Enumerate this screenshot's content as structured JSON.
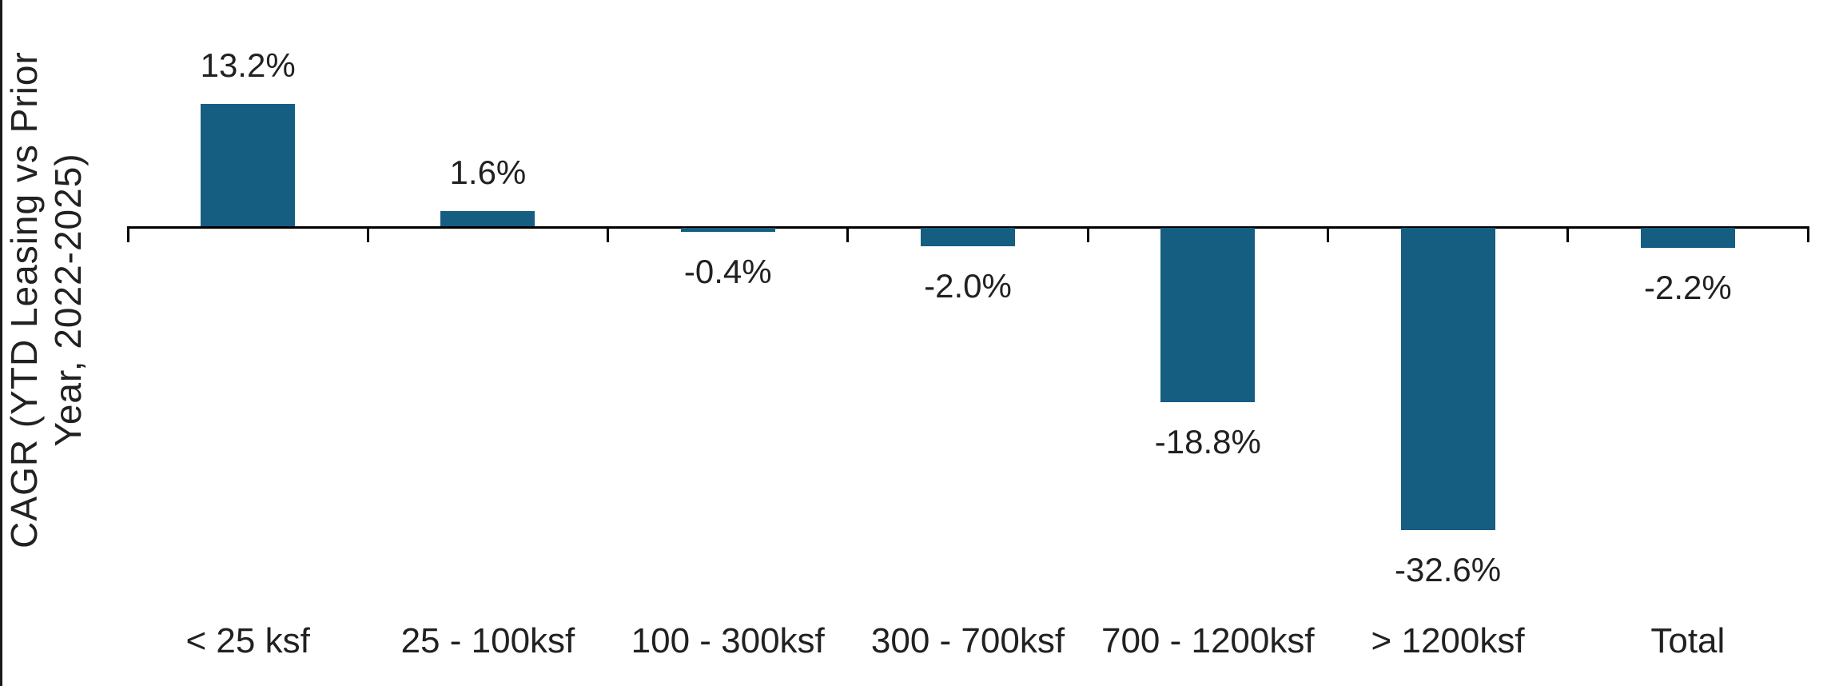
{
  "page": {
    "background_color": "#ffffff",
    "left_border_color": "#1a1a1a"
  },
  "chart_data": {
    "type": "bar",
    "title": "",
    "xlabel": "",
    "ylabel": "CAGR (YTD Leasing vs Prior Year, 2022-2025)",
    "ylabel_lines": [
      "CAGR (YTD Leasing vs Prior",
      "Year, 2022-2025)"
    ],
    "categories": [
      "< 25 ksf",
      "25 - 100ksf",
      "100 - 300ksf",
      "300 - 700ksf",
      "700 - 1200ksf",
      "> 1200ksf",
      "Total"
    ],
    "values": [
      13.2,
      1.6,
      -0.4,
      -2.0,
      -18.8,
      -32.6,
      -2.2
    ],
    "value_labels": [
      "13.2%",
      "1.6%",
      "-0.4%",
      "-2.0%",
      "-18.8%",
      "-32.6%",
      "-2.2%"
    ],
    "baseline": 0,
    "ylim": [
      -40,
      20
    ],
    "grid": false,
    "legend": false,
    "bar_color": "#155e81",
    "axis_color": "#000000",
    "label_color": "#212121"
  }
}
